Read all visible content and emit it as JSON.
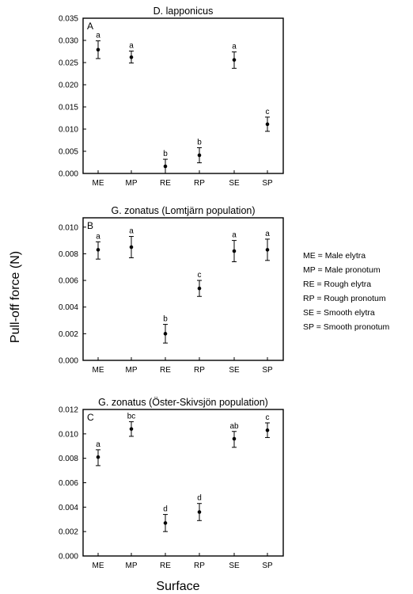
{
  "figure": {
    "ylabel": "Pull-off force (N)",
    "xlabel": "Surface",
    "legend": [
      "ME = Male elytra",
      "MP = Male pronotum",
      "RE = Rough elytra",
      "RP = Rough pronotum",
      "SE = Smooth elytra",
      "SP = Smooth pronotum"
    ]
  },
  "chart_data": [
    {
      "type": "scatter",
      "panel": "A",
      "title": "D. lapponicus",
      "categories": [
        "ME",
        "MP",
        "RE",
        "RP",
        "SE",
        "SP"
      ],
      "ylim": [
        0,
        0.035
      ],
      "yticks": [
        "0.000",
        "0.005",
        "0.010",
        "0.015",
        "0.020",
        "0.025",
        "0.030",
        "0.035"
      ],
      "values": [
        0.0279,
        0.0262,
        0.0016,
        0.0041,
        0.0256,
        0.0111
      ],
      "err_low": [
        0.0259,
        0.0249,
        0.0,
        0.0024,
        0.0237,
        0.0095
      ],
      "err_high": [
        0.0299,
        0.0276,
        0.0032,
        0.0058,
        0.0274,
        0.0127
      ],
      "letters": [
        "a",
        "a",
        "b",
        "b",
        "a",
        "c"
      ]
    },
    {
      "type": "scatter",
      "panel": "B",
      "title": "G. zonatus (Lomtjärn population)",
      "categories": [
        "ME",
        "MP",
        "RE",
        "RP",
        "SE",
        "SP"
      ],
      "ylim": [
        0,
        0.0107
      ],
      "yticks": [
        "0.000",
        "0.002",
        "0.004",
        "0.006",
        "0.008",
        "0.010"
      ],
      "values": [
        0.0083,
        0.0085,
        0.002,
        0.0054,
        0.0082,
        0.0083
      ],
      "err_low": [
        0.0076,
        0.0077,
        0.0013,
        0.0048,
        0.0074,
        0.0075
      ],
      "err_high": [
        0.0089,
        0.0093,
        0.0027,
        0.006,
        0.009,
        0.0091
      ],
      "letters": [
        "a",
        "a",
        "b",
        "c",
        "a",
        "a"
      ]
    },
    {
      "type": "scatter",
      "panel": "C",
      "title": "G. zonatus (Öster-Skivsjön population)",
      "categories": [
        "ME",
        "MP",
        "RE",
        "RP",
        "SE",
        "SP"
      ],
      "ylim": [
        0,
        0.012
      ],
      "yticks": [
        "0.000",
        "0.002",
        "0.004",
        "0.006",
        "0.008",
        "0.010",
        "0.012"
      ],
      "values": [
        0.0081,
        0.0104,
        0.0027,
        0.0036,
        0.0096,
        0.0103
      ],
      "err_low": [
        0.0074,
        0.0098,
        0.002,
        0.0029,
        0.0089,
        0.0097
      ],
      "err_high": [
        0.0087,
        0.011,
        0.0034,
        0.0043,
        0.0102,
        0.0109
      ],
      "letters": [
        "a",
        "bc",
        "d",
        "d",
        "ab",
        "c"
      ]
    }
  ]
}
